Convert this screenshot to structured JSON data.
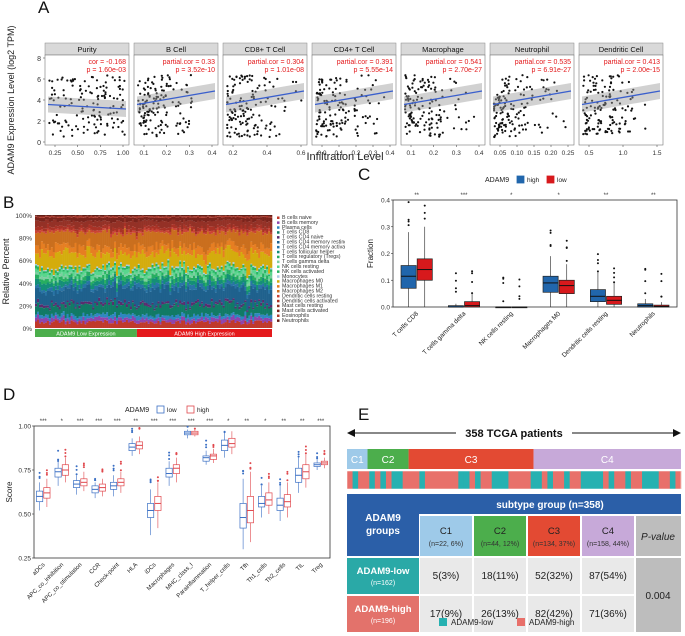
{
  "panel_labels": {
    "a": "A",
    "b": "B",
    "c": "C",
    "d": "D",
    "e": "E"
  },
  "chart_data": [
    {
      "id": "A",
      "type": "scatter",
      "ylabel": "ADAM9 Expression Level (log2 TPM)",
      "xlabel": "Infiltration Level",
      "y_ticks": [
        "0",
        "2",
        "4",
        "6",
        "8"
      ],
      "facets": [
        {
          "name": "Purity",
          "cor_label": "cor = -0.168",
          "p_label": "p = 1.60e-03",
          "x_ticks": [
            "0.25",
            "0.50",
            "0.75",
            "1.00"
          ]
        },
        {
          "name": "B Cell",
          "cor_label": "partial.cor = 0.33",
          "p_label": "p = 3.52e-10",
          "x_ticks": [
            "0.1",
            "0.2",
            "0.3",
            "0.4"
          ]
        },
        {
          "name": "CD8+ T Cell",
          "cor_label": "partial.cor = 0.304",
          "p_label": "p = 1.01e-08",
          "x_ticks": [
            "0.2",
            "0.4",
            "0.6"
          ]
        },
        {
          "name": "CD4+ T Cell",
          "cor_label": "partial.cor = 0.391",
          "p_label": "p = 5.55e-14",
          "x_ticks": [
            "0.0",
            "0.1",
            "0.2",
            "0.3",
            "0.4"
          ]
        },
        {
          "name": "Macrophage",
          "cor_label": "partial.cor = 0.541",
          "p_label": "p = 2.70e-27",
          "x_ticks": [
            "0.1",
            "0.2",
            "0.3",
            "0.4"
          ]
        },
        {
          "name": "Neutrophil",
          "cor_label": "partial.cor = 0.535",
          "p_label": "p = 6.91e-27",
          "x_ticks": [
            "0.05",
            "0.10",
            "0.15",
            "0.20",
            "0.25"
          ]
        },
        {
          "name": "Dendritic Cell",
          "cor_label": "partial.cor = 0.413",
          "p_label": "p = 2.00e-15",
          "x_ticks": [
            "0.5",
            "1.0",
            "1.5"
          ]
        }
      ]
    },
    {
      "id": "B",
      "type": "bar",
      "subtype": "stacked_percent",
      "ylabel": "Relative Percent",
      "y_ticks": [
        "0%",
        "20%",
        "40%",
        "60%",
        "80%",
        "100%"
      ],
      "groups": [
        "ADAM9 Low Expression",
        "ADAM9 High Expression"
      ],
      "group_colors": [
        "#4cae4c",
        "#e41a1c"
      ],
      "legend": [
        "B cells naive",
        "B cells memory",
        "Plasma cells",
        "T cells CD8",
        "T cells CD4 naive",
        "T cells CD4 memory resting",
        "T cells CD4 memory activated",
        "T cells follicular helper",
        "T cells regulatory (Tregs)",
        "T cells gamma delta",
        "NK cells resting",
        "NK cells activated",
        "Monocytes",
        "Macrophages M0",
        "Macrophages M1",
        "Macrophages M2",
        "Dendritic cells resting",
        "Dendritic cells activated",
        "Mast cells resting",
        "Mast cells activated",
        "Eosinophils",
        "Neutrophils"
      ],
      "legend_colors": [
        "#c0392b",
        "#8e44ad",
        "#2e86c1",
        "#117a65",
        "#5b2c6f",
        "#1f618d",
        "#2874a6",
        "#148f77",
        "#27ae60",
        "#7dcea0",
        "#58d68d",
        "#28b463",
        "#a9cce3",
        "#d4ac0d",
        "#e67e22",
        "#ca6f1e",
        "#cb4335",
        "#a93226",
        "#943126",
        "#7b241c",
        "#b03a2e",
        "#641e16"
      ]
    },
    {
      "id": "C",
      "type": "box",
      "legend_title": "ADAM9",
      "legend": [
        "high",
        "low"
      ],
      "colors": [
        "#2166ac",
        "#d7191c"
      ],
      "ylabel": "Fraction",
      "ylim": [
        0,
        0.4
      ],
      "y_ticks": [
        "0.0",
        "0.1",
        "0.2",
        "0.3",
        "0.4"
      ],
      "categories": [
        "T cells CD8",
        "T cells gamma delta",
        "NK cells resting",
        "Macrophages M0",
        "Dendritic cells resting",
        "Neutrophils"
      ],
      "significance": [
        "**",
        "***",
        "*",
        "*",
        "**",
        "**"
      ],
      "series": [
        {
          "name": "high",
          "stats": [
            [
              0.0,
              0.07,
              0.115,
              0.155,
              0.28
            ],
            [
              0.0,
              0.0,
              0.0,
              0.005,
              0.012
            ],
            [
              0.0,
              0.0,
              0.0,
              0.0,
              0.002
            ],
            [
              0.0,
              0.055,
              0.09,
              0.115,
              0.19
            ],
            [
              0.0,
              0.02,
              0.04,
              0.065,
              0.13
            ],
            [
              0.0,
              0.0,
              0.005,
              0.012,
              0.03
            ]
          ]
        },
        {
          "name": "low",
          "stats": [
            [
              0.0,
              0.1,
              0.14,
              0.18,
              0.3
            ],
            [
              0.0,
              0.0,
              0.005,
              0.02,
              0.05
            ],
            [
              0.0,
              0.0,
              0.0,
              0.0,
              0.002
            ],
            [
              0.0,
              0.05,
              0.08,
              0.1,
              0.16
            ],
            [
              0.0,
              0.01,
              0.025,
              0.04,
              0.09
            ],
            [
              0.0,
              0.0,
              0.002,
              0.007,
              0.018
            ]
          ]
        }
      ]
    },
    {
      "id": "D",
      "type": "box",
      "legend_title": "ADAM9",
      "legend": [
        "low",
        "high"
      ],
      "colors": [
        "#3a6fc4",
        "#e0474c"
      ],
      "ylabel": "Score",
      "ylim": [
        0.25,
        1.0
      ],
      "y_ticks": [
        "0.25",
        "0.50",
        "0.75",
        "1.00"
      ],
      "categories": [
        "aDCs",
        "APC_co_inhibition",
        "APC_co_stimulation",
        "CCR",
        "Check-point",
        "HLA",
        "iDCs",
        "Macrophages",
        "MHC_class_I",
        "Parainflammation",
        "T_helper_cells",
        "Tfh",
        "Th1_cells",
        "Th2_cells",
        "TIL",
        "Treg"
      ],
      "significance": [
        "***",
        "*",
        "***",
        "***",
        "***",
        "**",
        "***",
        "***",
        "***",
        "***",
        "*",
        "**",
        "*",
        "**",
        "**",
        "***"
      ],
      "series": [
        {
          "name": "low",
          "stats": [
            [
              0.52,
              0.57,
              0.6,
              0.63,
              0.68
            ],
            [
              0.66,
              0.71,
              0.74,
              0.76,
              0.8
            ],
            [
              0.61,
              0.65,
              0.67,
              0.69,
              0.72
            ],
            [
              0.59,
              0.62,
              0.64,
              0.66,
              0.68
            ],
            [
              0.6,
              0.64,
              0.66,
              0.68,
              0.72
            ],
            [
              0.83,
              0.86,
              0.88,
              0.9,
              0.93
            ],
            [
              0.38,
              0.48,
              0.52,
              0.56,
              0.64
            ],
            [
              0.66,
              0.71,
              0.73,
              0.76,
              0.8
            ],
            [
              0.93,
              0.95,
              0.96,
              0.97,
              0.98
            ],
            [
              0.78,
              0.8,
              0.82,
              0.83,
              0.86
            ],
            [
              0.82,
              0.86,
              0.89,
              0.92,
              0.96
            ],
            [
              0.3,
              0.42,
              0.48,
              0.56,
              0.7
            ],
            [
              0.48,
              0.54,
              0.56,
              0.6,
              0.66
            ],
            [
              0.46,
              0.52,
              0.55,
              0.59,
              0.66
            ],
            [
              0.62,
              0.68,
              0.72,
              0.76,
              0.82
            ],
            [
              0.75,
              0.77,
              0.78,
              0.79,
              0.81
            ]
          ]
        },
        {
          "name": "high",
          "stats": [
            [
              0.54,
              0.59,
              0.62,
              0.65,
              0.7
            ],
            [
              0.68,
              0.72,
              0.75,
              0.78,
              0.82
            ],
            [
              0.63,
              0.66,
              0.68,
              0.7,
              0.74
            ],
            [
              0.6,
              0.63,
              0.65,
              0.67,
              0.7
            ],
            [
              0.62,
              0.66,
              0.68,
              0.7,
              0.74
            ],
            [
              0.84,
              0.87,
              0.89,
              0.91,
              0.94
            ],
            [
              0.42,
              0.52,
              0.56,
              0.6,
              0.68
            ],
            [
              0.68,
              0.73,
              0.76,
              0.78,
              0.82
            ],
            [
              0.94,
              0.95,
              0.96,
              0.97,
              0.98
            ],
            [
              0.79,
              0.81,
              0.83,
              0.84,
              0.87
            ],
            [
              0.84,
              0.88,
              0.9,
              0.93,
              0.97
            ],
            [
              0.34,
              0.45,
              0.52,
              0.6,
              0.74
            ],
            [
              0.5,
              0.55,
              0.58,
              0.62,
              0.68
            ],
            [
              0.48,
              0.54,
              0.57,
              0.61,
              0.68
            ],
            [
              0.65,
              0.7,
              0.74,
              0.78,
              0.84
            ],
            [
              0.76,
              0.78,
              0.79,
              0.8,
              0.82
            ]
          ]
        }
      ]
    },
    {
      "id": "E",
      "type": "table",
      "title": "358 TCGA patients",
      "subtypes": [
        "C1",
        "C2",
        "C3",
        "C4"
      ],
      "subtype_counts": [
        22,
        44,
        134,
        158
      ],
      "subtype_colors": [
        "#9ecae9",
        "#4cae4c",
        "#e34a33",
        "#c7a9d9"
      ],
      "header_left_title": "ADAM9 groups",
      "header_group": "subtype group (n=358)",
      "header_cols": [
        {
          "name": "C1",
          "sub": "(n=22, 6%)"
        },
        {
          "name": "C2",
          "sub": "(n=44, 12%)"
        },
        {
          "name": "C3",
          "sub": "(n=134, 37%)"
        },
        {
          "name": "C4",
          "sub": "(n=158, 44%)"
        }
      ],
      "pvalue_header": "P-value",
      "rows": [
        {
          "label": "ADAM9-low",
          "sub": "(n=162)",
          "cells": [
            "5(3%)",
            "18(11%)",
            "52(32%)",
            "87(54%)"
          ]
        },
        {
          "label": "ADAM9-high",
          "sub": "(n=196)",
          "cells": [
            "17(9%)",
            "26(13%)",
            "82(42%)",
            "71(36%)"
          ]
        }
      ],
      "pvalue": "0.004",
      "legend": [
        "ADAM9-low",
        "ADAM9-high"
      ],
      "legend_colors": [
        "#26b1b1",
        "#e8706a"
      ],
      "strip_colors": [
        "#26b1b1",
        "#e8706a"
      ]
    }
  ]
}
